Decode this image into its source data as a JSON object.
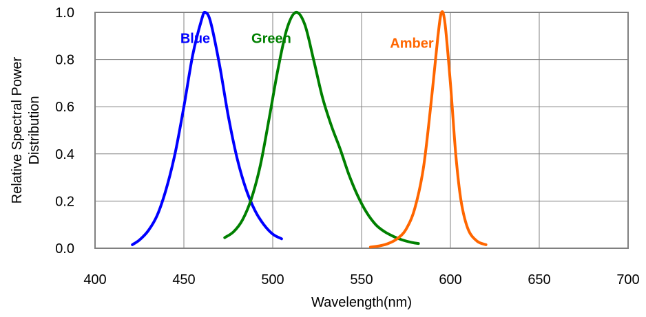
{
  "chart_data": {
    "type": "line",
    "title": "",
    "xlabel": "Wavelength(nm)",
    "ylabel": [
      "Relative Spectral Power",
      "Distribution"
    ],
    "xlim": [
      400,
      700
    ],
    "ylim": [
      0,
      1.0
    ],
    "x_ticks": [
      "400",
      "450",
      "500",
      "550",
      "600",
      "650",
      "700"
    ],
    "y_ticks": [
      "0.0",
      "0.2",
      "0.4",
      "0.6",
      "0.8",
      "1.0"
    ],
    "grid": true,
    "series": [
      {
        "name": "Blue",
        "color": "#0000ff",
        "points": [
          [
            421,
            0.015
          ],
          [
            425,
            0.035
          ],
          [
            430,
            0.075
          ],
          [
            435,
            0.14
          ],
          [
            440,
            0.25
          ],
          [
            445,
            0.4
          ],
          [
            450,
            0.6
          ],
          [
            455,
            0.82
          ],
          [
            460,
            0.97
          ],
          [
            462,
            1.0
          ],
          [
            465,
            0.96
          ],
          [
            470,
            0.78
          ],
          [
            475,
            0.56
          ],
          [
            480,
            0.38
          ],
          [
            485,
            0.25
          ],
          [
            490,
            0.16
          ],
          [
            495,
            0.1
          ],
          [
            500,
            0.06
          ],
          [
            505,
            0.04
          ]
        ]
      },
      {
        "name": "Green",
        "color": "#008000",
        "points": [
          [
            473,
            0.045
          ],
          [
            478,
            0.07
          ],
          [
            483,
            0.12
          ],
          [
            488,
            0.21
          ],
          [
            493,
            0.35
          ],
          [
            498,
            0.55
          ],
          [
            503,
            0.76
          ],
          [
            508,
            0.93
          ],
          [
            513,
            1.0
          ],
          [
            518,
            0.95
          ],
          [
            523,
            0.8
          ],
          [
            528,
            0.64
          ],
          [
            533,
            0.52
          ],
          [
            538,
            0.42
          ],
          [
            543,
            0.31
          ],
          [
            548,
            0.22
          ],
          [
            553,
            0.15
          ],
          [
            558,
            0.1
          ],
          [
            563,
            0.07
          ],
          [
            568,
            0.05
          ],
          [
            573,
            0.035
          ],
          [
            578,
            0.025
          ],
          [
            582,
            0.02
          ]
        ]
      },
      {
        "name": "Amber",
        "color": "#ff6600",
        "points": [
          [
            555,
            0.005
          ],
          [
            560,
            0.01
          ],
          [
            565,
            0.02
          ],
          [
            570,
            0.04
          ],
          [
            575,
            0.08
          ],
          [
            580,
            0.17
          ],
          [
            585,
            0.35
          ],
          [
            590,
            0.68
          ],
          [
            593,
            0.9
          ],
          [
            595,
            1.0
          ],
          [
            597,
            0.95
          ],
          [
            600,
            0.7
          ],
          [
            603,
            0.4
          ],
          [
            606,
            0.2
          ],
          [
            610,
            0.08
          ],
          [
            615,
            0.03
          ],
          [
            620,
            0.015
          ]
        ]
      }
    ],
    "annotations": [
      {
        "text": "Blue",
        "color": "#0000ff",
        "x": 448,
        "y": 0.89
      },
      {
        "text": "Green",
        "color": "#008000",
        "x": 488,
        "y": 0.89
      },
      {
        "text": "Amber",
        "color": "#ff6600",
        "x": 566,
        "y": 0.87
      }
    ]
  }
}
